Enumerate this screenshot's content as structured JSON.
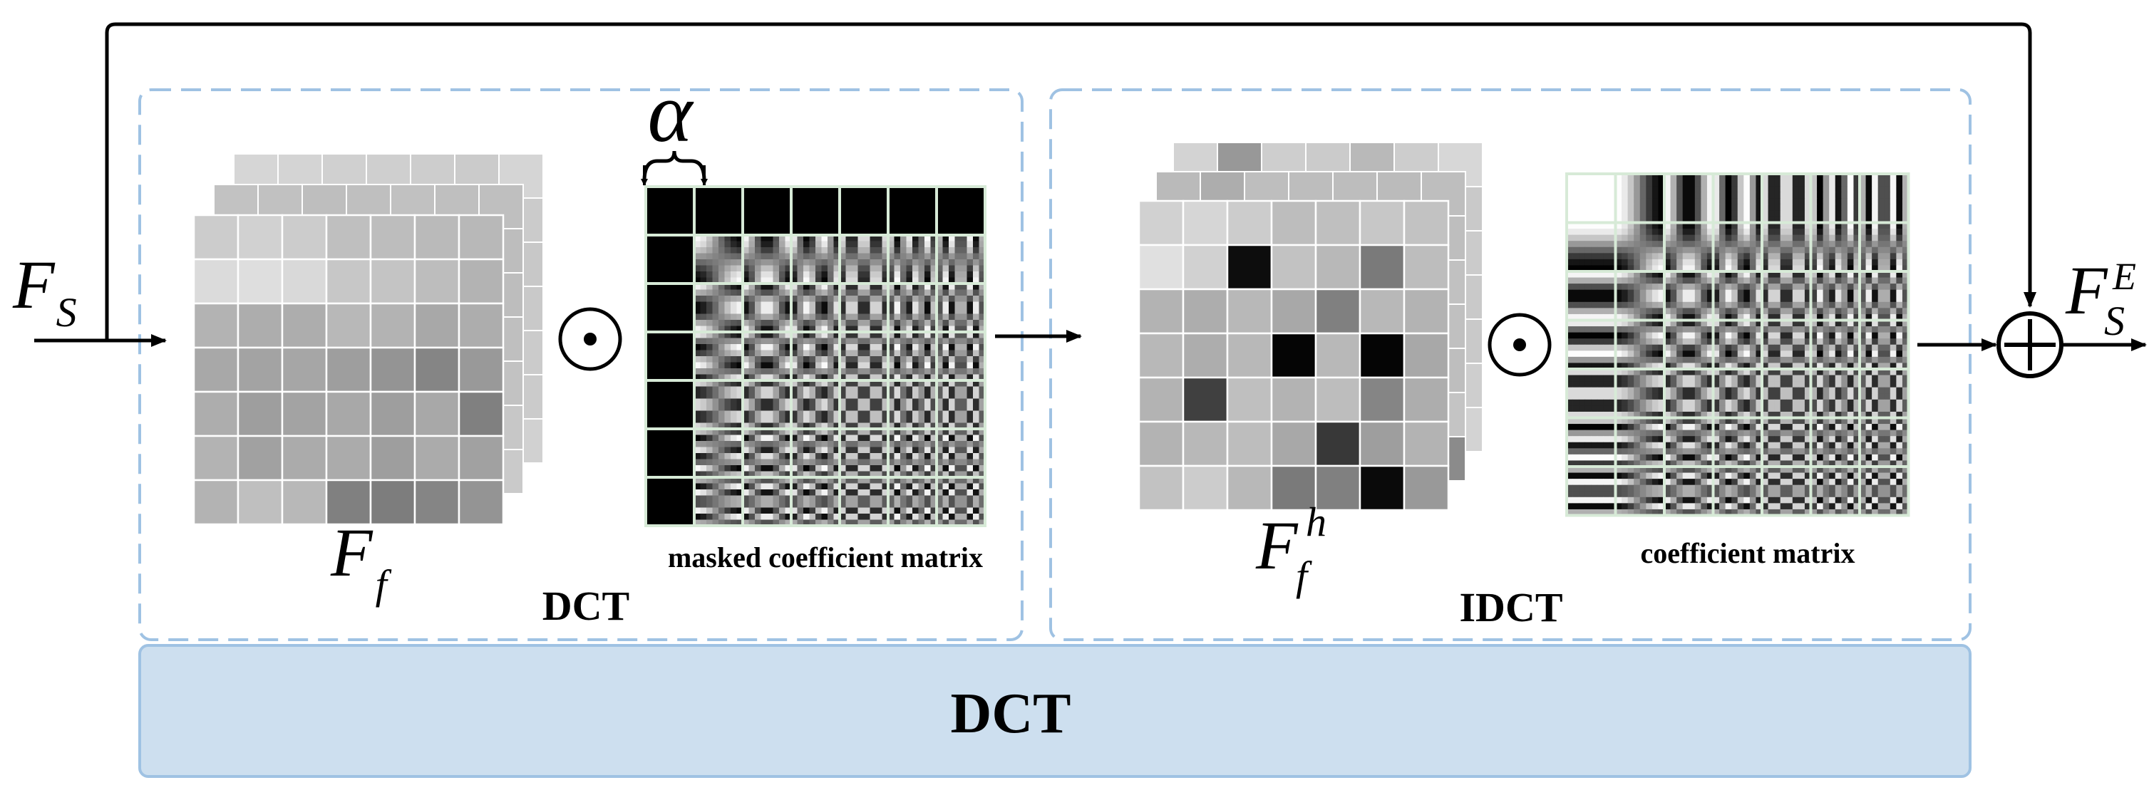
{
  "input_label": {
    "main": "F",
    "sub": "S"
  },
  "output_label": {
    "main": "F",
    "sub": "S",
    "sup": "E"
  },
  "alpha_symbol": "α",
  "odot_symbol": "⊙",
  "oplus_symbol": "⊕",
  "dct_panel": {
    "feature_label": {
      "main": "F",
      "sub": "f"
    },
    "matrix_caption": "masked coefficient matrix",
    "panel_title": "DCT",
    "feature_grid": [
      [
        0.8,
        0.82,
        0.8,
        0.75,
        0.74,
        0.73,
        0.72
      ],
      [
        0.86,
        0.87,
        0.85,
        0.78,
        0.77,
        0.74,
        0.7
      ],
      [
        0.7,
        0.68,
        0.68,
        0.72,
        0.7,
        0.66,
        0.68
      ],
      [
        0.66,
        0.64,
        0.65,
        0.62,
        0.58,
        0.52,
        0.6
      ],
      [
        0.68,
        0.62,
        0.64,
        0.66,
        0.62,
        0.66,
        0.5
      ],
      [
        0.7,
        0.63,
        0.67,
        0.67,
        0.62,
        0.67,
        0.63
      ],
      [
        0.7,
        0.75,
        0.72,
        0.5,
        0.49,
        0.52,
        0.58
      ]
    ]
  },
  "idct_panel": {
    "feature_label": {
      "main": "F",
      "sub": "f",
      "sup": "h"
    },
    "matrix_caption": "coefficient matrix",
    "panel_title": "IDCT",
    "feature_grid": [
      [
        0.82,
        0.84,
        0.8,
        0.74,
        0.75,
        0.78,
        0.76
      ],
      [
        0.88,
        0.82,
        0.05,
        0.76,
        0.72,
        0.48,
        0.74
      ],
      [
        0.7,
        0.68,
        0.72,
        0.66,
        0.5,
        0.72,
        0.7
      ],
      [
        0.72,
        0.68,
        0.72,
        0.02,
        0.72,
        0.02,
        0.66
      ],
      [
        0.7,
        0.25,
        0.75,
        0.7,
        0.74,
        0.52,
        0.68
      ],
      [
        0.7,
        0.72,
        0.74,
        0.66,
        0.22,
        0.62,
        0.7
      ],
      [
        0.76,
        0.8,
        0.72,
        0.48,
        0.5,
        0.04,
        0.6
      ]
    ]
  },
  "bottom_bar_label": "DCT",
  "colors": {
    "dashed_border": "#9fc2e3",
    "bottom_bar_fill": "#cddfef",
    "bottom_bar_border": "#9fc2e3",
    "grid_line": "#d7ead7",
    "arrow": "#000000"
  }
}
